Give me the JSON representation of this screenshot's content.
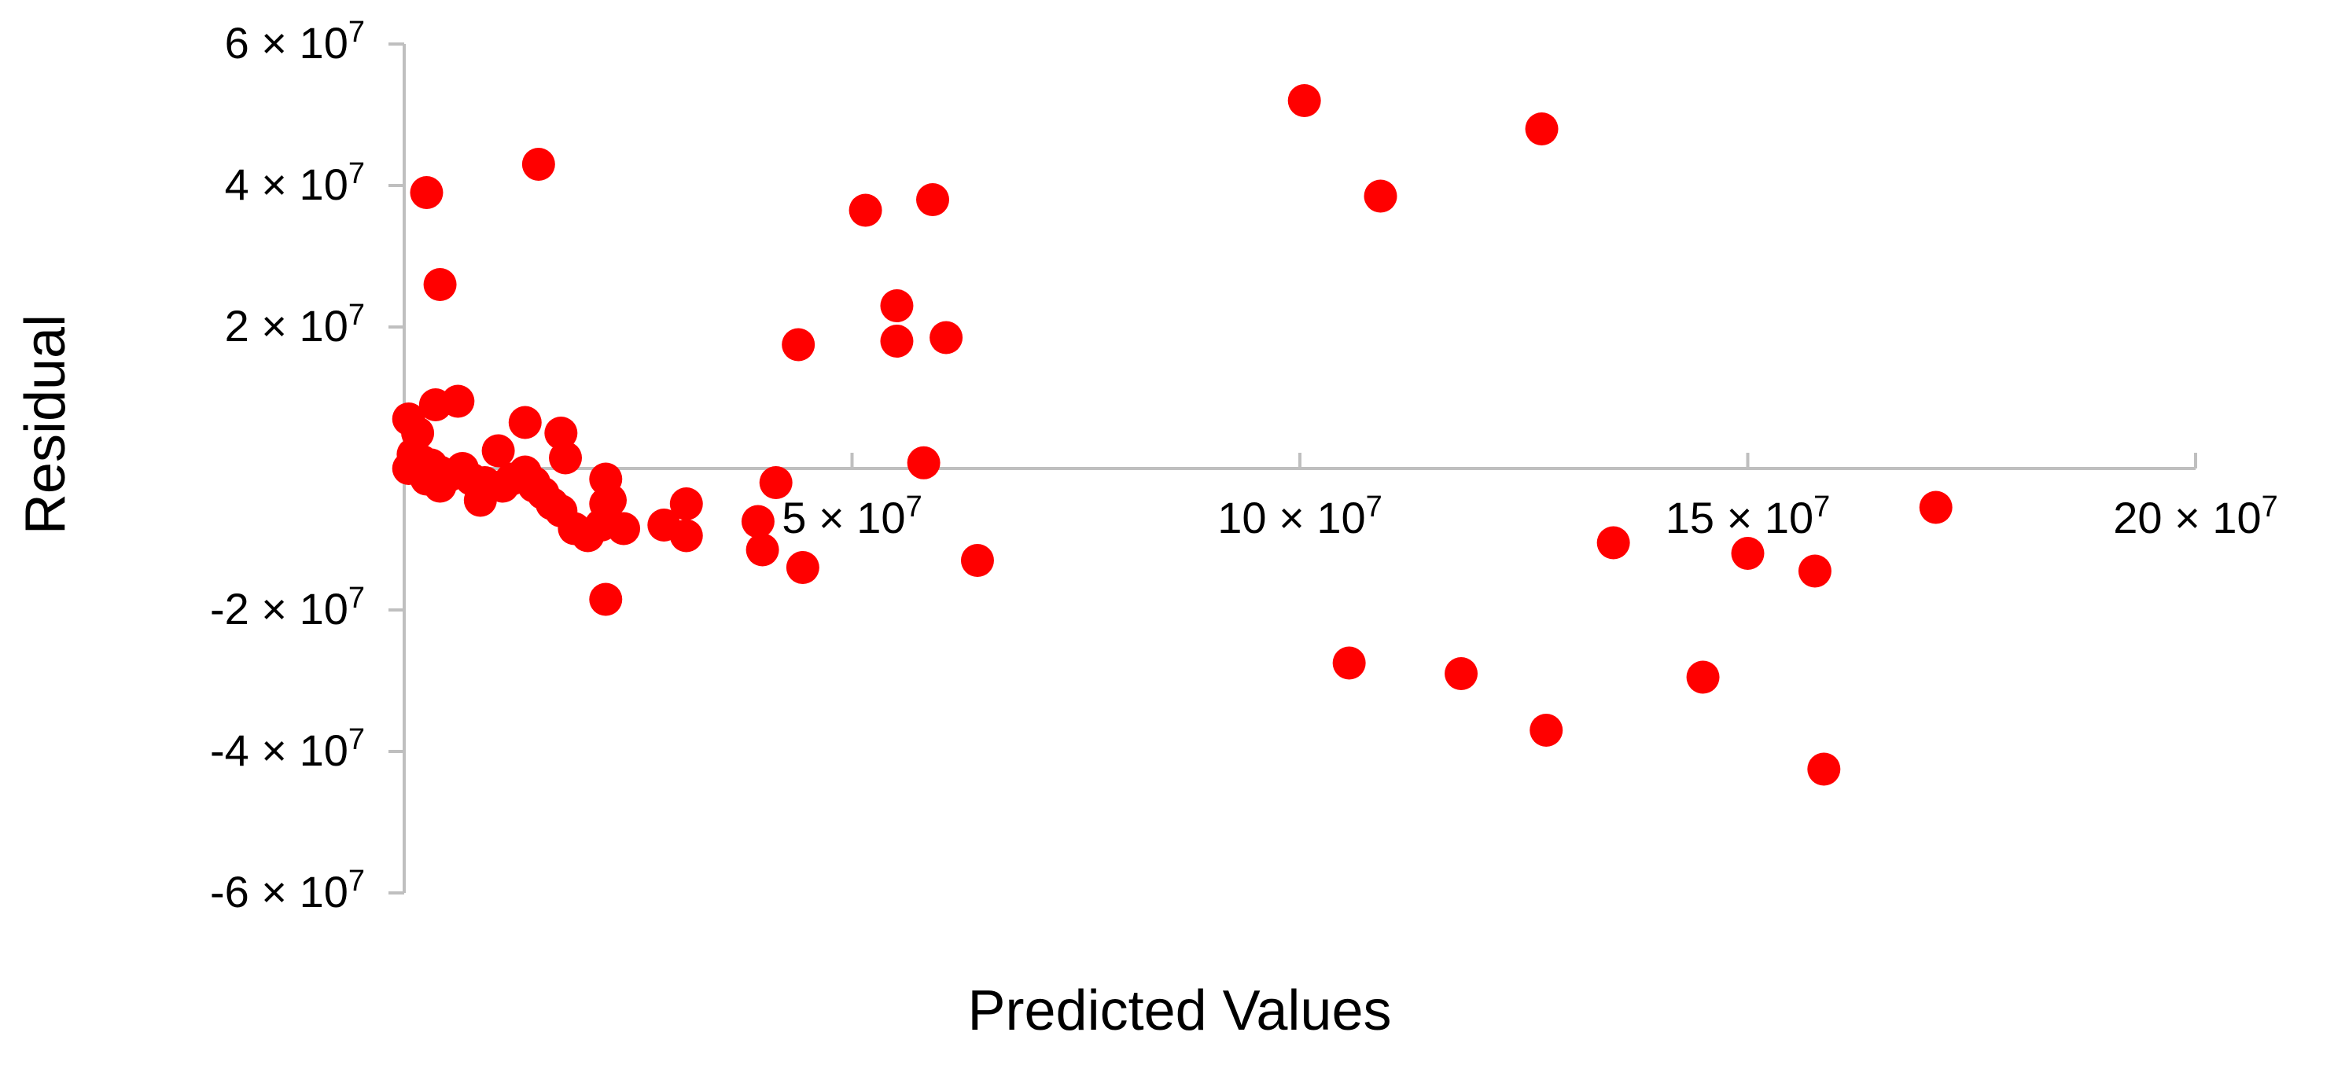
{
  "chart_data": {
    "type": "scatter",
    "title": "",
    "xlabel": "Predicted Values",
    "ylabel": "Residual",
    "xlim": [
      0,
      200000000
    ],
    "ylim": [
      -60000000,
      60000000
    ],
    "grid": false,
    "legend": "none",
    "marker_color": "#ff0000",
    "x_ticks": [
      {
        "value": 50000000,
        "label": "5 × 10",
        "exp": "7"
      },
      {
        "value": 100000000,
        "label": "10 × 10",
        "exp": "7"
      },
      {
        "value": 150000000,
        "label": "15 × 10",
        "exp": "7"
      },
      {
        "value": 200000000,
        "label": "20 × 10",
        "exp": "7"
      }
    ],
    "y_ticks": [
      {
        "value": 60000000,
        "label": "6 × 10",
        "exp": "7"
      },
      {
        "value": 40000000,
        "label": "4 × 10",
        "exp": "7"
      },
      {
        "value": 20000000,
        "label": "2 × 10",
        "exp": "7"
      },
      {
        "value": -20000000,
        "label": "-2 × 10",
        "exp": "7"
      },
      {
        "value": -40000000,
        "label": "-4 × 10",
        "exp": "7"
      },
      {
        "value": -60000000,
        "label": "-6 × 10",
        "exp": "7"
      }
    ],
    "series": [
      {
        "points": [
          [
            2500000,
            39000000
          ],
          [
            15000000,
            43000000
          ],
          [
            4000000,
            26000000
          ],
          [
            51500000,
            36500000
          ],
          [
            59000000,
            38000000
          ],
          [
            55000000,
            23000000
          ],
          [
            44000000,
            17500000
          ],
          [
            55000000,
            18000000
          ],
          [
            60500000,
            18500000
          ],
          [
            58000000,
            800000
          ],
          [
            41500000,
            -2000000
          ],
          [
            22500000,
            -1500000
          ],
          [
            31500000,
            -5000000
          ],
          [
            31500000,
            -9500000
          ],
          [
            29000000,
            -8000000
          ],
          [
            39500000,
            -7500000
          ],
          [
            40000000,
            -11500000
          ],
          [
            44500000,
            -14000000
          ],
          [
            64000000,
            -13000000
          ],
          [
            22500000,
            -18500000
          ],
          [
            100500000,
            52000000
          ],
          [
            109000000,
            38500000
          ],
          [
            127000000,
            48000000
          ],
          [
            171000000,
            -5500000
          ],
          [
            135000000,
            -10500000
          ],
          [
            150000000,
            -12000000
          ],
          [
            157500000,
            -14500000
          ],
          [
            105500000,
            -27500000
          ],
          [
            118000000,
            -29000000
          ],
          [
            145000000,
            -29500000
          ],
          [
            127500000,
            -37000000
          ],
          [
            158500000,
            -42500000
          ],
          [
            500000,
            7000000
          ],
          [
            1500000,
            5000000
          ],
          [
            3500000,
            9000000
          ],
          [
            6000000,
            9500000
          ],
          [
            13500000,
            6500000
          ],
          [
            17500000,
            5000000
          ],
          [
            10500000,
            2500000
          ],
          [
            18000000,
            1500000
          ],
          [
            1000000,
            2000000
          ],
          [
            2000000,
            1000000
          ],
          [
            3000000,
            500000
          ],
          [
            500000,
            0
          ],
          [
            4000000,
            -500000
          ],
          [
            5000000,
            -1000000
          ],
          [
            6500000,
            0
          ],
          [
            7500000,
            -1500000
          ],
          [
            9000000,
            -2000000
          ],
          [
            11000000,
            -2500000
          ],
          [
            12000000,
            -1500000
          ],
          [
            13500000,
            -500000
          ],
          [
            14500000,
            -2500000
          ],
          [
            15500000,
            -3500000
          ],
          [
            16500000,
            -5000000
          ],
          [
            17500000,
            -6000000
          ],
          [
            19000000,
            -8500000
          ],
          [
            20500000,
            -9500000
          ],
          [
            22000000,
            -8000000
          ],
          [
            22500000,
            -5000000
          ],
          [
            23000000,
            -4500000
          ],
          [
            24500000,
            -8500000
          ],
          [
            2500000,
            -1500000
          ],
          [
            4000000,
            -2500000
          ],
          [
            8500000,
            -4500000
          ],
          [
            14500000,
            -2000000
          ]
        ]
      }
    ]
  }
}
